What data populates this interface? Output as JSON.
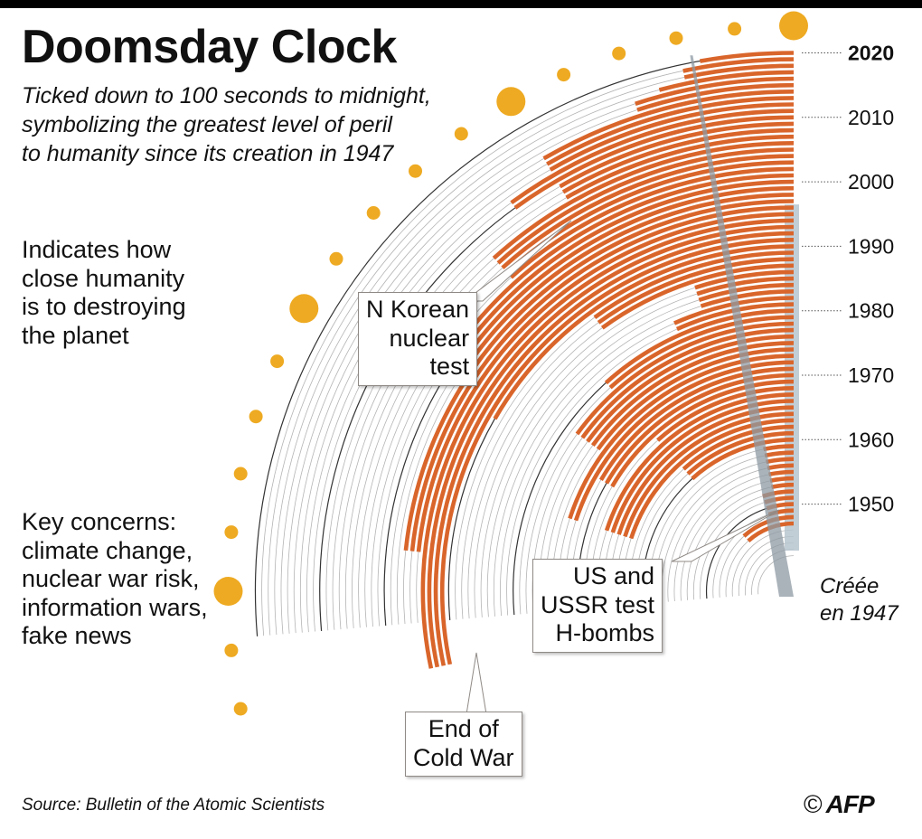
{
  "header": {
    "title": "Doomsday Clock",
    "subtitle_lines": [
      "Ticked down to 100 seconds to midnight,",
      "symbolizing the greatest level of peril",
      "to humanity since its creation in 1947"
    ]
  },
  "notes": {
    "indicates": [
      "Indicates how",
      "close humanity",
      "is to destroying",
      "the planet"
    ],
    "concerns": [
      "Key concerns:",
      "climate change,",
      "nuclear war risk,",
      "information wars,",
      "fake news"
    ]
  },
  "annotations": {
    "north_korea": [
      "N Korean",
      "nuclear",
      "test"
    ],
    "h_bombs": [
      "US and",
      "USSR test",
      "H-bombs"
    ],
    "cold_war": [
      "End of",
      "Cold War"
    ],
    "created": [
      "Créée",
      "en 1947"
    ]
  },
  "footer": {
    "source": "Source: Bulletin of the Atomic Scientists",
    "copyright": "©",
    "logo": "AFP"
  },
  "colors": {
    "bar": "#d9652b",
    "dot": "#eeaa22",
    "ring": "#b4b4b4",
    "decade_ring": "#333333",
    "band": "#b7c6cf",
    "hand": "#8e9aa3"
  },
  "chart_data": {
    "type": "radial-bar",
    "unit": "minutes to midnight",
    "x_tick_labels": [
      "1950",
      "1960",
      "1970",
      "1980",
      "1990",
      "2000",
      "2010",
      "2020"
    ],
    "x_range": [
      1947,
      2020
    ],
    "series": [
      {
        "x": [
          1947,
          1948,
          1949,
          1950,
          1951,
          1952,
          1953,
          1954,
          1955,
          1956,
          1957,
          1958,
          1959,
          1960,
          1961,
          1962,
          1963,
          1964,
          1965,
          1966,
          1967,
          1968,
          1969,
          1970,
          1971,
          1972,
          1973,
          1974,
          1975,
          1976,
          1977,
          1978,
          1979,
          1980,
          1981,
          1982,
          1983,
          1984,
          1985,
          1986,
          1987,
          1988,
          1989,
          1990,
          1991,
          1992,
          1993,
          1994,
          1995,
          1996,
          1997,
          1998,
          1999,
          2000,
          2001,
          2002,
          2003,
          2004,
          2005,
          2006,
          2007,
          2008,
          2009,
          2010,
          2011,
          2012,
          2013,
          2014,
          2015,
          2016,
          2017,
          2018,
          2019,
          2020
        ],
        "values": [
          7,
          7,
          3,
          3,
          3,
          3,
          2,
          2,
          2,
          2,
          2,
          2,
          2,
          7,
          7,
          7,
          12,
          12,
          12,
          12,
          12,
          7,
          10,
          10,
          10,
          12,
          12,
          9,
          9,
          9,
          9,
          9,
          7,
          7,
          4,
          4,
          3,
          3,
          3,
          3,
          6,
          6,
          6,
          10,
          17,
          17,
          17,
          17,
          14,
          14,
          14,
          9,
          9,
          9,
          9,
          7,
          7,
          7,
          7,
          7,
          5,
          5,
          5,
          6,
          6,
          5,
          5,
          5,
          3,
          3,
          2.5,
          2,
          2,
          1.67
        ]
      }
    ]
  }
}
